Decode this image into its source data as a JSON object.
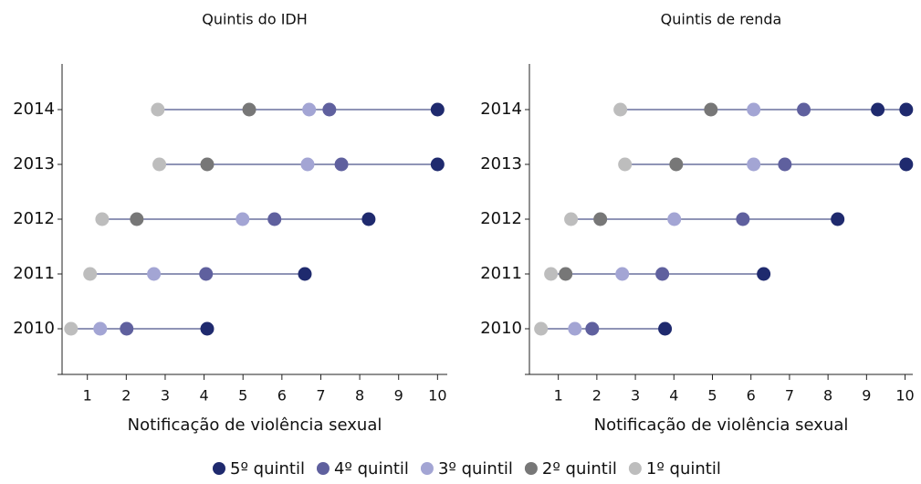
{
  "chart_data": [
    {
      "type": "dot",
      "title": "Quintis do IDH",
      "x_label": "Notificação de violência sexual",
      "categories": [
        "2010",
        "2011",
        "2012",
        "2013",
        "2014"
      ],
      "xlim": [
        0.35,
        10.25
      ],
      "xticks": [
        1,
        2,
        3,
        4,
        5,
        6,
        7,
        8,
        9,
        10
      ],
      "series": [
        {
          "name": "5º quintil",
          "color": "#1f2a6e",
          "values": [
            4.08,
            6.59,
            8.23,
            10.0,
            10.0
          ]
        },
        {
          "name": "4º quintil",
          "color": "#5f609e",
          "values": [
            2.01,
            4.05,
            5.81,
            7.53,
            7.22
          ]
        },
        {
          "name": "3º quintil",
          "color": "#a3a5d4",
          "values": [
            1.33,
            2.71,
            4.99,
            6.66,
            6.7
          ]
        },
        {
          "name": "2º quintil",
          "color": "#777777",
          "values": [
            null,
            null,
            2.27,
            4.08,
            5.16
          ]
        },
        {
          "name": "1º quintil",
          "color": "#bdbdbd",
          "values": [
            0.58,
            1.07,
            1.38,
            2.85,
            2.81
          ]
        }
      ]
    },
    {
      "type": "dot",
      "title": "Quintis de renda",
      "x_label": "Notificação de violência sexual",
      "categories": [
        "2010",
        "2011",
        "2012",
        "2013",
        "2014"
      ],
      "xlim": [
        0.25,
        10.2
      ],
      "xticks": [
        1,
        2,
        3,
        4,
        5,
        6,
        7,
        8,
        9,
        10
      ],
      "series": [
        {
          "name": "5º quintil",
          "color": "#1f2a6e",
          "values": [
            3.77,
            6.33,
            8.25,
            10.03,
            9.29
          ]
        },
        {
          "name": "4º quintil",
          "color": "#5f609e",
          "values": [
            1.88,
            3.7,
            5.79,
            6.88,
            7.37
          ]
        },
        {
          "name": "3º quintil",
          "color": "#a3a5d4",
          "values": [
            1.43,
            2.66,
            4.01,
            6.07,
            6.07
          ]
        },
        {
          "name": "2º quintil",
          "color": "#777777",
          "values": [
            null,
            1.19,
            2.09,
            4.06,
            4.96
          ]
        },
        {
          "name": "1º quintil",
          "color": "#bdbdbd",
          "values": [
            0.55,
            0.81,
            1.33,
            2.73,
            2.61
          ]
        }
      ],
      "extra_points": [
        {
          "category": "2014",
          "value": 10.03,
          "color": "#1f2a6e"
        }
      ]
    }
  ]
}
